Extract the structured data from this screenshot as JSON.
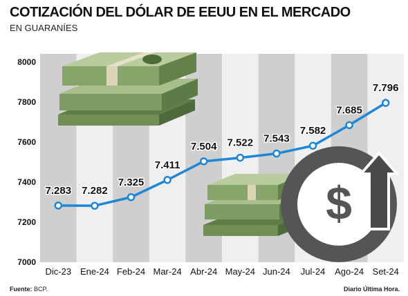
{
  "header": {
    "title": "COTIZACIÓN DEL DÓLAR DE EEUU EN EL MERCADO",
    "subtitle": "EN GUARANÍES"
  },
  "footer": {
    "source_label": "Fuente:",
    "source_value": "BCP.",
    "credit": "Diario Última Hora."
  },
  "colors": {
    "background_panel": "#efefef",
    "column_shade": "#cfcfcf",
    "line": "#1f86d6",
    "marker_fill": "#ffffff",
    "text": "#111111",
    "dollar_circle": "#555555",
    "arrow": "#4a4a4a",
    "money_green": "#6f8f55"
  },
  "decorations": [
    "dollar-bills-stack-icon",
    "dollar-bills-stack-icon",
    "dollar-up-arrow-icon"
  ],
  "chart_data": {
    "type": "line",
    "categories": [
      "Dic-23",
      "Ene-24",
      "Feb-24",
      "Mar-24",
      "Abr-24",
      "May-24",
      "Jun-24",
      "Jul-24",
      "Ago-24",
      "Set-24"
    ],
    "values": [
      7283,
      7282,
      7325,
      7411,
      7504,
      7522,
      7543,
      7582,
      7685,
      7796
    ],
    "data_labels": [
      "7.283",
      "7.282",
      "7.325",
      "7.411",
      "7.504",
      "7.522",
      "7.543",
      "7.582",
      "7.685",
      "7.796"
    ],
    "yticks": [
      7000,
      7200,
      7400,
      7600,
      7800,
      8000
    ],
    "ylim": [
      7000,
      8000
    ],
    "xlabel": "",
    "ylabel": "",
    "grid": false,
    "alternating_column_shading": true
  }
}
